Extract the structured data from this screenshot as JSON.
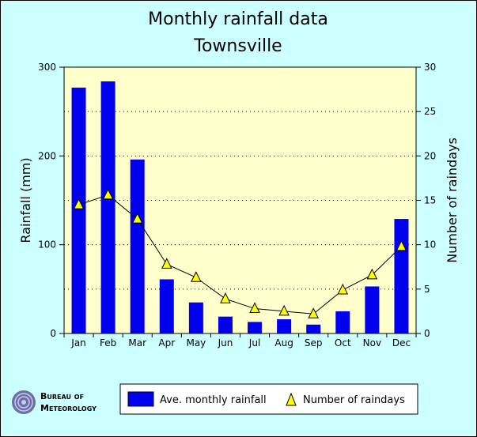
{
  "chart_data": {
    "type": "bar",
    "title": "Monthly rainfall data",
    "subtitle": "Townsville",
    "ylabel": "Rainfall (mm)",
    "y2label": "Number of raindays",
    "categories": [
      "Jan",
      "Feb",
      "Mar",
      "Apr",
      "May",
      "Jun",
      "Jul",
      "Aug",
      "Sep",
      "Oct",
      "Nov",
      "Dec"
    ],
    "ylim": [
      0,
      300
    ],
    "y2lim": [
      0,
      30
    ],
    "yticks": [
      0,
      100,
      200,
      300
    ],
    "y2ticks": [
      0,
      5,
      10,
      15,
      20,
      25,
      30
    ],
    "grid": true,
    "legend_position": "bottom",
    "series": [
      {
        "name": "Ave. monthly rainfall",
        "kind": "bar",
        "axis": "left",
        "color": "#0000ee",
        "values": [
          277,
          284,
          196,
          61,
          35,
          19,
          13,
          16,
          10,
          25,
          53,
          129
        ]
      },
      {
        "name": "Number of raindays",
        "kind": "line",
        "axis": "right",
        "color": "#000000",
        "marker": "triangle",
        "marker_color": "#ffff00",
        "values": [
          14.5,
          15.6,
          12.9,
          7.8,
          6.3,
          3.9,
          2.8,
          2.5,
          2.2,
          4.9,
          6.6,
          9.8
        ]
      }
    ],
    "colors": {
      "background": "#ccffff",
      "plot_background": "#ffffcc"
    }
  },
  "logo": {
    "line1": "Bureau of",
    "line2": "Meteorology"
  }
}
